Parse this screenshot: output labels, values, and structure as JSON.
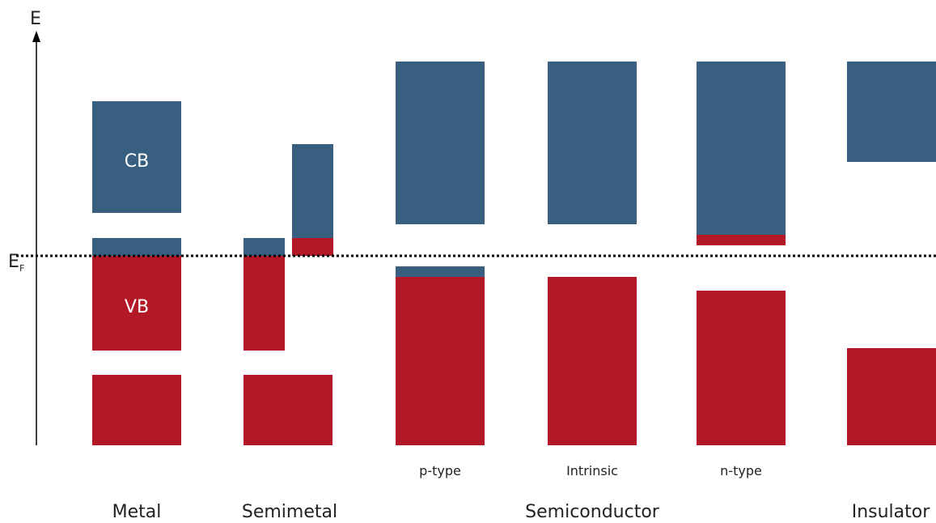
{
  "axis": {
    "energy_label": "E",
    "fermi_label_main": "E",
    "fermi_label_sub": "F"
  },
  "band_labels": {
    "conduction": "CB",
    "valence": "VB"
  },
  "doping_labels": {
    "p_type": "p-type",
    "intrinsic": "Intrinsic",
    "n_type": "n-type"
  },
  "categories": {
    "metal": "Metal",
    "semimetal": "Semimetal",
    "semiconductor": "Semiconductor",
    "insulator": "Insulator"
  },
  "colors": {
    "empty_band": "#395f80",
    "filled_band": "#b31826",
    "axis": "#000000",
    "text": "#222222"
  }
}
